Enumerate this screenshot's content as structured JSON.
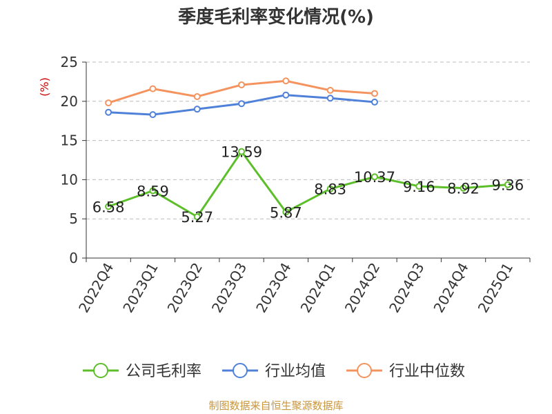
{
  "chart_data": {
    "type": "line",
    "title": "季度毛利率变化情况(%)",
    "ylabel": "(%)",
    "xlabel": "",
    "ylim": [
      0,
      25
    ],
    "yticks": [
      0,
      5,
      10,
      15,
      20,
      25
    ],
    "grid": true,
    "legend": "bottom",
    "categories": [
      "2022Q4",
      "2023Q1",
      "2023Q2",
      "2023Q3",
      "2023Q4",
      "2024Q1",
      "2024Q2",
      "2024Q3",
      "2024Q4",
      "2025Q1"
    ],
    "series": [
      {
        "name": "公司毛利率",
        "color": "#5cbf2a",
        "values": [
          6.58,
          8.59,
          5.27,
          13.59,
          5.87,
          8.83,
          10.37,
          9.16,
          8.92,
          9.36
        ],
        "labels": [
          "6.58",
          "8.59",
          "5.27",
          "13.59",
          "5.87",
          "8.83",
          "10.37",
          "9.16",
          "8.92",
          "9.36"
        ]
      },
      {
        "name": "行业均值",
        "color": "#4f81d9",
        "values": [
          18.6,
          18.3,
          19.0,
          19.7,
          20.8,
          20.4,
          19.9,
          null,
          null,
          null
        ]
      },
      {
        "name": "行业中位数",
        "color": "#f4935e",
        "values": [
          19.8,
          21.6,
          20.6,
          22.1,
          22.6,
          21.4,
          21.0,
          null,
          null,
          null
        ]
      }
    ]
  },
  "footer": {
    "source": "制图数据来自恒生聚源数据库"
  },
  "colors": {
    "axis": "#333333",
    "grid": "#bbbbbb",
    "ylabel": "#cc0000"
  }
}
